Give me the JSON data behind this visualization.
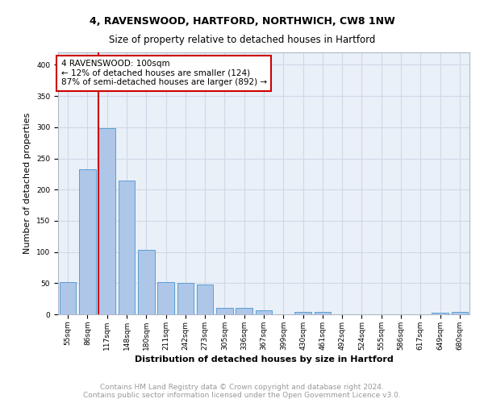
{
  "title1": "4, RAVENSWOOD, HARTFORD, NORTHWICH, CW8 1NW",
  "title2": "Size of property relative to detached houses in Hartford",
  "xlabel": "Distribution of detached houses by size in Hartford",
  "ylabel": "Number of detached properties",
  "categories": [
    "55sqm",
    "86sqm",
    "117sqm",
    "148sqm",
    "180sqm",
    "211sqm",
    "242sqm",
    "273sqm",
    "305sqm",
    "336sqm",
    "367sqm",
    "399sqm",
    "430sqm",
    "461sqm",
    "492sqm",
    "524sqm",
    "555sqm",
    "586sqm",
    "617sqm",
    "649sqm",
    "680sqm"
  ],
  "values": [
    52,
    232,
    299,
    215,
    103,
    52,
    50,
    48,
    10,
    10,
    6,
    0,
    4,
    4,
    0,
    0,
    0,
    0,
    0,
    3,
    4
  ],
  "bar_color": "#aec6e8",
  "bar_edge_color": "#5a9fd4",
  "redline_index": 2,
  "annotation_text": "4 RAVENSWOOD: 100sqm\n← 12% of detached houses are smaller (124)\n87% of semi-detached houses are larger (892) →",
  "annotation_box_color": "#ffffff",
  "annotation_box_edge_color": "#cc0000",
  "redline_color": "#cc0000",
  "ylim": [
    0,
    420
  ],
  "yticks": [
    0,
    50,
    100,
    150,
    200,
    250,
    300,
    350,
    400
  ],
  "grid_color": "#d0d8e8",
  "background_color": "#eaf0f8",
  "footer_line1": "Contains HM Land Registry data © Crown copyright and database right 2024.",
  "footer_line2": "Contains public sector information licensed under the Open Government Licence v3.0.",
  "title1_fontsize": 9,
  "title2_fontsize": 8.5,
  "xlabel_fontsize": 8,
  "ylabel_fontsize": 8,
  "tick_fontsize": 6.5,
  "annotation_fontsize": 7.5,
  "footer_fontsize": 6.5
}
